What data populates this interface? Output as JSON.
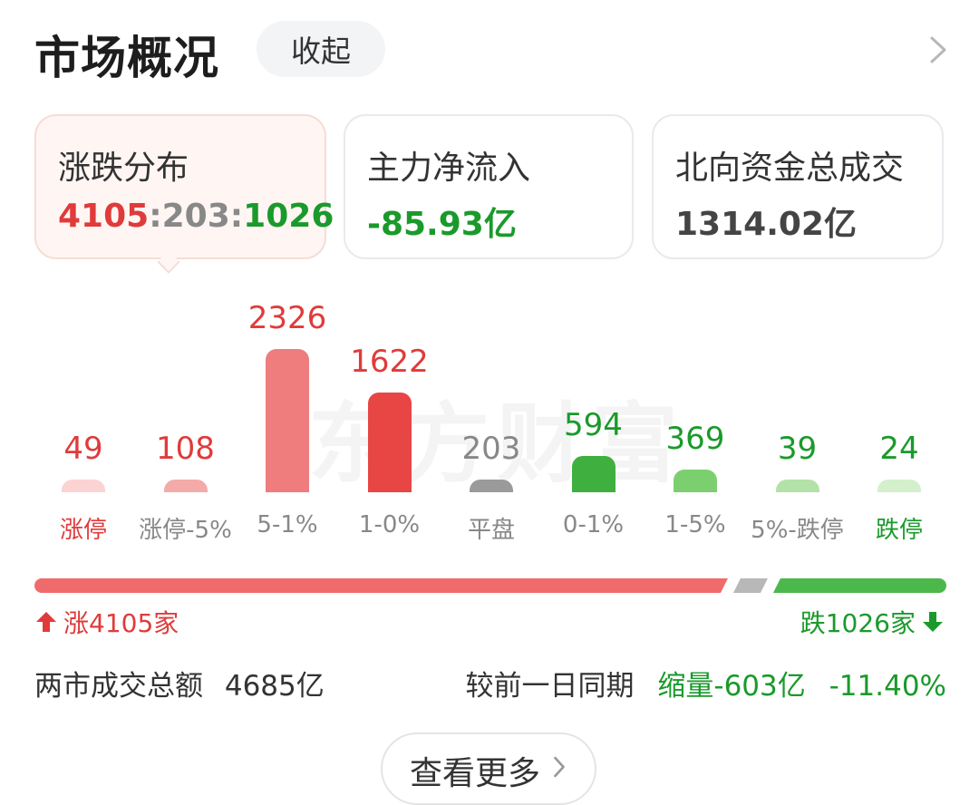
{
  "header": {
    "title": "市场概况",
    "collapse_label": "收起"
  },
  "cards": {
    "distribution": {
      "title": "涨跌分布",
      "up": "4105",
      "flat": "203",
      "down": "1026",
      "sep": ":"
    },
    "main_inflow": {
      "title": "主力净流入",
      "value": "-85.93亿"
    },
    "northbound": {
      "title": "北向资金总成交",
      "value": "1314.02亿"
    }
  },
  "watermark": "东方财富",
  "chart_data": {
    "type": "bar",
    "categories": [
      "涨停",
      "涨停-5%",
      "5-1%",
      "1-0%",
      "平盘",
      "0-1%",
      "1-5%",
      "5%-跌停",
      "跌停"
    ],
    "values": [
      49,
      108,
      2326,
      1622,
      203,
      594,
      369,
      39,
      24
    ],
    "bar_colors": [
      "#fbd3d3",
      "#f5aaaa",
      "#ef7d7d",
      "#e84545",
      "#9a9a9a",
      "#3faf3f",
      "#7ccf6e",
      "#b3e2a8",
      "#d3efcc"
    ],
    "value_colors": [
      "#e03b3b",
      "#e03b3b",
      "#e03b3b",
      "#e03b3b",
      "#888888",
      "#1a9a2b",
      "#1a9a2b",
      "#1a9a2b",
      "#1a9a2b"
    ],
    "label_colors": [
      "#e03b3b",
      "#888888",
      "#888888",
      "#888888",
      "#888888",
      "#888888",
      "#888888",
      "#888888",
      "#1a9a2b"
    ]
  },
  "ratio_bar": {
    "up": 4105,
    "flat": 203,
    "down": 1026,
    "up_color": "#f06b6b",
    "flat_color": "#b8b8b8",
    "down_color": "#4cb84c"
  },
  "summary": {
    "rise_text": "涨4105家",
    "fall_text": "跌1026家",
    "turnover_label": "两市成交总额",
    "turnover_value": "4685亿",
    "compare_label": "较前一日同期",
    "compare_change": "缩量-603亿",
    "compare_pct": "-11.40%"
  },
  "footer": {
    "more_label": "查看更多"
  }
}
